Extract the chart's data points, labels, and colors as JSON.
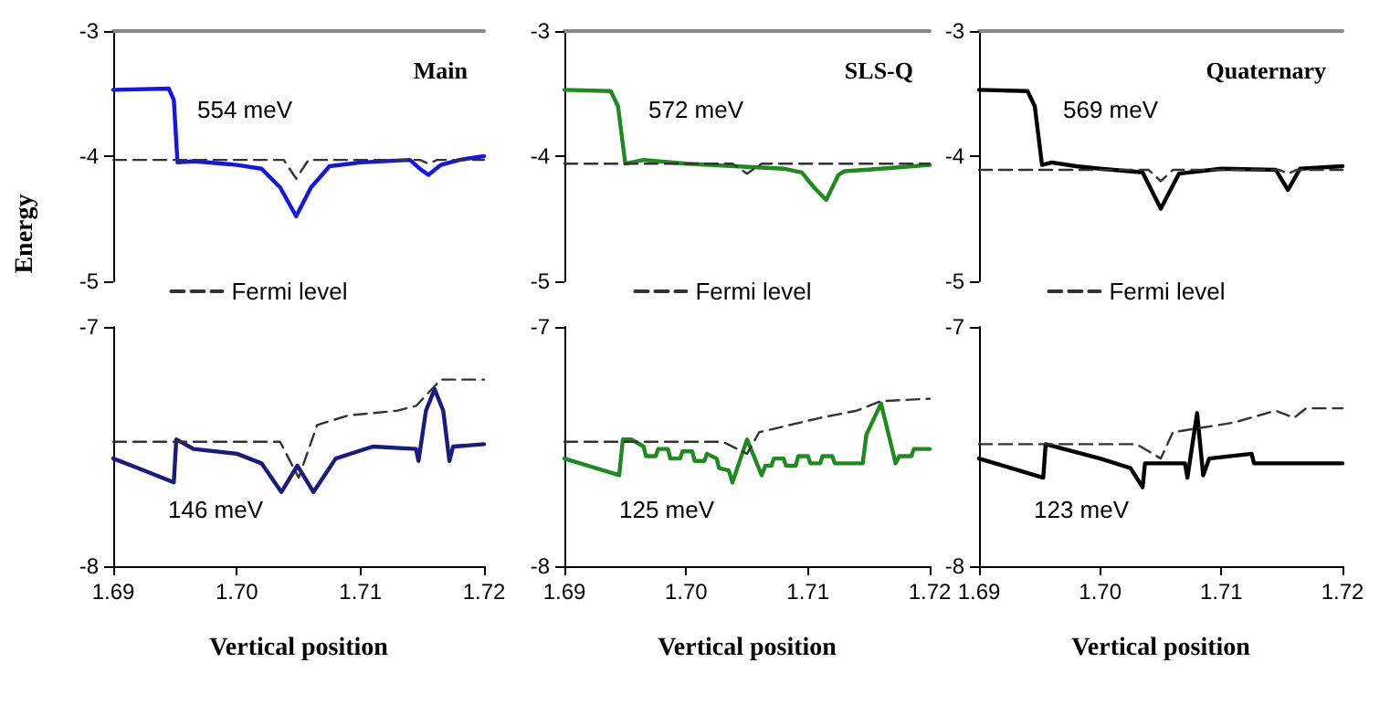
{
  "chart_data": [
    {
      "type": "line",
      "title": "Main",
      "ylabel": "Energy",
      "xlim": [
        1.69,
        1.72
      ],
      "ylim": [
        -5,
        -3
      ],
      "yticks": [
        -5,
        -4,
        -3
      ],
      "tick_labels": "y",
      "legend": "bottom",
      "marker": "none",
      "grid": false,
      "annotations": [
        "554 meV"
      ],
      "series": [
        {
          "color": "#1515e6",
          "x": [
            1.69,
            1.6945,
            1.6949,
            1.6952,
            1.6965,
            1.7,
            1.702,
            1.7035,
            1.7048,
            1.706,
            1.7075,
            1.71,
            1.714,
            1.7148,
            1.7155,
            1.7165,
            1.718,
            1.72
          ],
          "values": [
            -3.47,
            -3.46,
            -3.55,
            -4.05,
            -4.04,
            -4.07,
            -4.1,
            -4.25,
            -4.48,
            -4.25,
            -4.08,
            -4.05,
            -4.03,
            -4.1,
            -4.15,
            -4.07,
            -4.03,
            -4.0
          ]
        },
        {
          "name": "Fermi level",
          "color": "#333333",
          "line_style": "dashed",
          "x": [
            1.69,
            1.7038,
            1.7048,
            1.7058,
            1.7148,
            1.7155,
            1.7162,
            1.72
          ],
          "values": [
            -4.03,
            -4.03,
            -4.18,
            -4.03,
            -4.03,
            -4.06,
            -4.03,
            -4.03
          ]
        }
      ]
    },
    {
      "type": "line",
      "xlabel": "Vertical position",
      "xlim": [
        1.69,
        1.72
      ],
      "ylim": [
        -8,
        -7
      ],
      "yticks": [
        -8,
        -7
      ],
      "xticks": [
        {
          "value": 1.69,
          "label": "1.69"
        },
        {
          "value": 1.7,
          "label": "1.70"
        },
        {
          "value": 1.71,
          "label": "1.71"
        },
        {
          "value": 1.72,
          "label": "1.72"
        }
      ],
      "marker": "none",
      "grid": false,
      "annotations": [
        "146 meV"
      ],
      "series": [
        {
          "color": "#1a1a80",
          "x": [
            1.69,
            1.6925,
            1.6949,
            1.6951,
            1.6965,
            1.7,
            1.702,
            1.7036,
            1.7049,
            1.7062,
            1.708,
            1.711,
            1.7145,
            1.7147,
            1.7153,
            1.716,
            1.7167,
            1.7172,
            1.7175,
            1.72
          ],
          "values": [
            -7.55,
            -7.6,
            -7.65,
            -7.47,
            -7.51,
            -7.53,
            -7.57,
            -7.69,
            -7.58,
            -7.69,
            -7.55,
            -7.5,
            -7.51,
            -7.56,
            -7.35,
            -7.26,
            -7.35,
            -7.56,
            -7.5,
            -7.49
          ]
        },
        {
          "color": "#333333",
          "line_style": "dashed",
          "x": [
            1.69,
            1.7035,
            1.705,
            1.7065,
            1.709,
            1.713,
            1.7145,
            1.7165,
            1.72
          ],
          "values": [
            -7.48,
            -7.48,
            -7.63,
            -7.41,
            -7.37,
            -7.35,
            -7.33,
            -7.22,
            -7.22
          ]
        }
      ]
    },
    {
      "type": "line",
      "title": "SLS-Q",
      "xlim": [
        1.69,
        1.72
      ],
      "ylim": [
        -5,
        -3
      ],
      "yticks": [
        -5,
        -4,
        -3
      ],
      "tick_labels": "y",
      "legend": "bottom",
      "marker": "none",
      "grid": false,
      "annotations": [
        "572 meV"
      ],
      "series": [
        {
          "color": "#1f8a1f",
          "x": [
            1.69,
            1.6938,
            1.6944,
            1.695,
            1.6965,
            1.7,
            1.704,
            1.708,
            1.7095,
            1.7105,
            1.7115,
            1.7125,
            1.713,
            1.716,
            1.72
          ],
          "values": [
            -3.47,
            -3.48,
            -3.6,
            -4.06,
            -4.03,
            -4.06,
            -4.08,
            -4.1,
            -4.13,
            -4.25,
            -4.35,
            -4.15,
            -4.12,
            -4.1,
            -4.07
          ]
        },
        {
          "name": "Fermi level",
          "color": "#333333",
          "line_style": "dashed",
          "x": [
            1.69,
            1.7038,
            1.705,
            1.7062,
            1.72
          ],
          "values": [
            -4.06,
            -4.06,
            -4.14,
            -4.06,
            -4.06
          ]
        }
      ]
    },
    {
      "type": "line",
      "xlabel": "Vertical position",
      "xlim": [
        1.69,
        1.72
      ],
      "ylim": [
        -8,
        -7
      ],
      "yticks": [
        -8,
        -7
      ],
      "xticks": [
        {
          "value": 1.69,
          "label": "1.69"
        },
        {
          "value": 1.7,
          "label": "1.70"
        },
        {
          "value": 1.71,
          "label": "1.71"
        },
        {
          "value": 1.72,
          "label": "1.72"
        }
      ],
      "marker": "none",
      "grid": false,
      "annotations": [
        "125 meV"
      ],
      "series": [
        {
          "color": "#1f8a1f",
          "x": [
            1.69,
            1.6945,
            1.6948,
            1.6955,
            1.6965,
            1.6967,
            1.6975,
            1.6977,
            1.6985,
            1.6987,
            1.6995,
            1.6997,
            1.7005,
            1.7007,
            1.7015,
            1.7017,
            1.7025,
            1.7027,
            1.7035,
            1.7038,
            1.705,
            1.7062,
            1.7065,
            1.707,
            1.7072,
            1.708,
            1.7082,
            1.709,
            1.7092,
            1.71,
            1.7102,
            1.711,
            1.7112,
            1.712,
            1.7122,
            1.713,
            1.7145,
            1.7148,
            1.716,
            1.7172,
            1.7175,
            1.7185,
            1.7187,
            1.7195,
            1.72
          ],
          "values": [
            -7.55,
            -7.62,
            -7.47,
            -7.47,
            -7.5,
            -7.54,
            -7.54,
            -7.51,
            -7.51,
            -7.55,
            -7.55,
            -7.52,
            -7.52,
            -7.56,
            -7.56,
            -7.53,
            -7.55,
            -7.59,
            -7.6,
            -7.65,
            -7.47,
            -7.62,
            -7.58,
            -7.58,
            -7.55,
            -7.55,
            -7.58,
            -7.58,
            -7.54,
            -7.54,
            -7.57,
            -7.57,
            -7.54,
            -7.54,
            -7.57,
            -7.57,
            -7.57,
            -7.45,
            -7.32,
            -7.57,
            -7.54,
            -7.54,
            -7.51,
            -7.51,
            -7.51
          ]
        },
        {
          "color": "#333333",
          "line_style": "dashed",
          "x": [
            1.69,
            1.703,
            1.705,
            1.706,
            1.711,
            1.714,
            1.716,
            1.72
          ],
          "values": [
            -7.48,
            -7.48,
            -7.53,
            -7.44,
            -7.38,
            -7.35,
            -7.31,
            -7.3
          ]
        }
      ]
    },
    {
      "type": "line",
      "title": "Quaternary",
      "xlim": [
        1.69,
        1.72
      ],
      "ylim": [
        -5,
        -3
      ],
      "yticks": [
        -5,
        -4,
        -3
      ],
      "tick_labels": "y",
      "legend": "bottom",
      "marker": "none",
      "grid": false,
      "annotations": [
        "569 meV"
      ],
      "series": [
        {
          "color": "#000000",
          "x": [
            1.69,
            1.694,
            1.6946,
            1.6952,
            1.696,
            1.698,
            1.7,
            1.7035,
            1.705,
            1.7065,
            1.71,
            1.7145,
            1.7155,
            1.7165,
            1.72
          ],
          "values": [
            -3.47,
            -3.48,
            -3.6,
            -4.07,
            -4.05,
            -4.08,
            -4.1,
            -4.13,
            -4.42,
            -4.14,
            -4.1,
            -4.11,
            -4.27,
            -4.1,
            -4.08
          ]
        },
        {
          "name": "Fermi level",
          "color": "#333333",
          "line_style": "dashed",
          "x": [
            1.69,
            1.704,
            1.705,
            1.706,
            1.7148,
            1.7155,
            1.7162,
            1.72
          ],
          "values": [
            -4.11,
            -4.11,
            -4.2,
            -4.11,
            -4.11,
            -4.14,
            -4.11,
            -4.11
          ]
        }
      ]
    },
    {
      "type": "line",
      "xlabel": "Vertical position",
      "xlim": [
        1.69,
        1.72
      ],
      "ylim": [
        -8,
        -7
      ],
      "yticks": [
        -8,
        -7
      ],
      "xticks": [
        {
          "value": 1.69,
          "label": "1.69"
        },
        {
          "value": 1.7,
          "label": "1.70"
        },
        {
          "value": 1.71,
          "label": "1.71"
        },
        {
          "value": 1.72,
          "label": "1.72"
        }
      ],
      "marker": "none",
      "grid": false,
      "annotations": [
        "123 meV"
      ],
      "series": [
        {
          "color": "#000000",
          "x": [
            1.69,
            1.6953,
            1.6955,
            1.697,
            1.7,
            1.7025,
            1.7035,
            1.7037,
            1.707,
            1.7072,
            1.708,
            1.7085,
            1.709,
            1.7125,
            1.7127,
            1.713,
            1.72
          ],
          "values": [
            -7.55,
            -7.63,
            -7.49,
            -7.51,
            -7.55,
            -7.59,
            -7.67,
            -7.57,
            -7.57,
            -7.63,
            -7.36,
            -7.62,
            -7.55,
            -7.53,
            -7.57,
            -7.57,
            -7.57
          ]
        },
        {
          "color": "#333333",
          "line_style": "dashed",
          "x": [
            1.69,
            1.703,
            1.705,
            1.706,
            1.711,
            1.7145,
            1.716,
            1.717,
            1.72
          ],
          "values": [
            -7.49,
            -7.49,
            -7.55,
            -7.44,
            -7.4,
            -7.35,
            -7.38,
            -7.34,
            -7.34
          ]
        }
      ]
    }
  ]
}
